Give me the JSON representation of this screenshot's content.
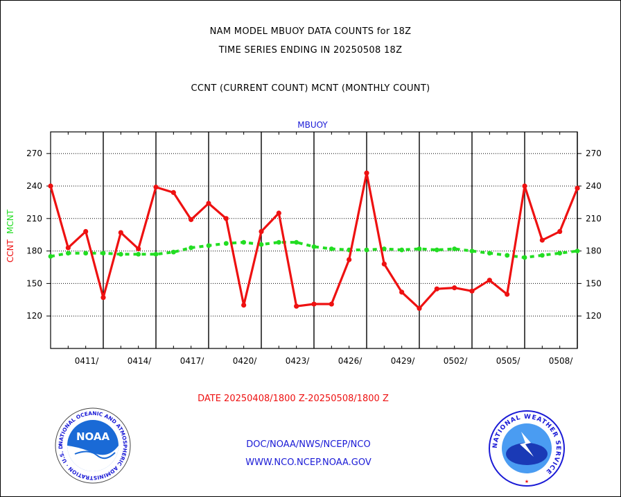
{
  "header": {
    "title_line1": "NAM MODEL MBUOY DATA COUNTS for 18Z",
    "title_line2": "TIME SERIES ENDING IN 20250508 18Z",
    "subtitle": "CCNT (CURRENT COUNT) MCNT (MONTHLY COUNT)"
  },
  "chart_data": {
    "type": "line",
    "panel_label": "MBUOY",
    "ylabel_ccnt": "CCNT",
    "ylabel_mcnt": "MCNT",
    "xlabel": "DATE 20250408/1800 Z-20250508/1800 Z",
    "ylim": [
      90,
      290
    ],
    "yticks": [
      120,
      150,
      180,
      210,
      240,
      270
    ],
    "x_tick_labels": [
      "0411/",
      "0414/",
      "0417/",
      "0420/",
      "0423/",
      "0426/",
      "0429/",
      "0502/",
      "0505/",
      "0508/"
    ],
    "x_tick_days": [
      3,
      6,
      9,
      12,
      15,
      18,
      21,
      24,
      27,
      30
    ],
    "x_range_days": [
      0,
      30
    ],
    "grid": true,
    "series": [
      {
        "name": "CCNT",
        "color": "#ee1111",
        "x_days": [
          0,
          1,
          2,
          3,
          4,
          5,
          6,
          7,
          8,
          9,
          10,
          11,
          12,
          13,
          14,
          15,
          16,
          17,
          18,
          19,
          20,
          21,
          22,
          23,
          24,
          25,
          26,
          27,
          28,
          29,
          30
        ],
        "values": [
          240,
          183,
          198,
          137,
          197,
          182,
          239,
          234,
          209,
          224,
          210,
          130,
          198,
          215,
          129,
          131,
          131,
          172,
          252,
          168,
          142,
          127,
          145,
          146,
          143,
          153,
          140,
          240,
          190,
          198,
          238
        ]
      },
      {
        "name": "MCNT",
        "color": "#22dd22",
        "x_days": [
          0,
          1,
          2,
          3,
          4,
          5,
          6,
          7,
          8,
          9,
          10,
          11,
          12,
          13,
          14,
          15,
          16,
          17,
          18,
          19,
          20,
          21,
          22,
          23,
          24,
          25,
          26,
          27,
          28,
          29,
          30
        ],
        "values": [
          175,
          178,
          178,
          178,
          177,
          177,
          177,
          179,
          183,
          185,
          187,
          188,
          186,
          188,
          188,
          184,
          182,
          181,
          181,
          182,
          181,
          182,
          181,
          182,
          180,
          178,
          176,
          174,
          176,
          178,
          180
        ]
      }
    ]
  },
  "footer": {
    "link1": "DOC/NOAA/NWS/NCEP/NCO",
    "link2": "WWW.NCO.NCEP.NOAA.GOV",
    "noaa_logo_text": "NOAA",
    "noaa_ring_text": "NATIONAL OCEANIC AND ATMOSPHERIC ADMINISTRATION · U.S. DEPARTMENT OF COMMERCE",
    "nws_ring_text": "NATIONAL WEATHER SERVICE"
  },
  "colors": {
    "ccnt": "#ee1111",
    "mcnt": "#22dd22",
    "panel_label": "#1a1ad6",
    "link": "#1a1ad6"
  }
}
